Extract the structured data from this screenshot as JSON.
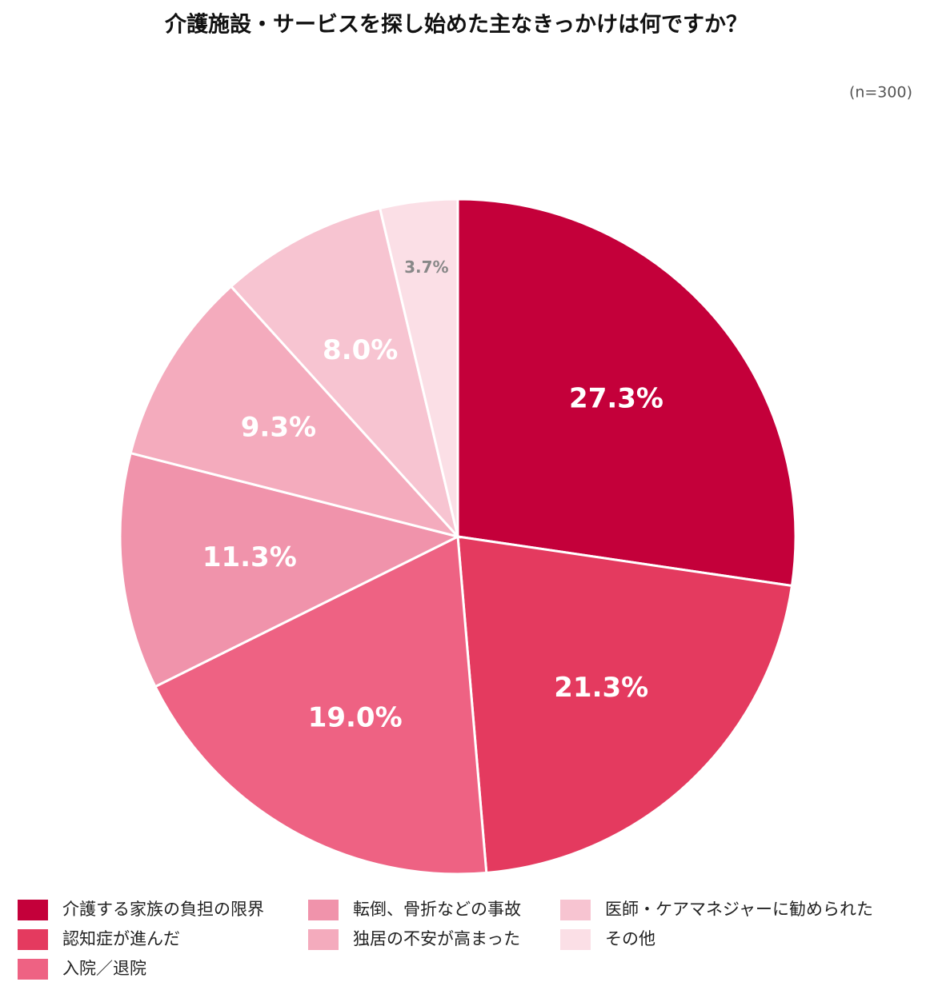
{
  "chart_data": {
    "type": "pie",
    "title": "介護施設・サービスを探し始めた主なきっかけは何ですか？",
    "subtitle": "(n=300)",
    "categories": [
      "介護する家族の負担の限界",
      "認知症が進んだ",
      "入院／退院",
      "転倒、骨折などの事故",
      "独居の不安が高まった",
      "医師・ケアマネジャーに勧められた",
      "その他"
    ],
    "values": [
      27.3,
      21.3,
      19.0,
      11.3,
      9.3,
      8.0,
      3.7
    ],
    "value_labels": [
      "27.3%",
      "21.3%",
      "19.0%",
      "11.3%",
      "9.3%",
      "8.0%",
      "3.7%"
    ],
    "colors": [
      "#c4003a",
      "#e43a5f",
      "#ee6283",
      "#f093ab",
      "#f4abbd",
      "#f7c4d1",
      "#fbdfe6"
    ]
  }
}
